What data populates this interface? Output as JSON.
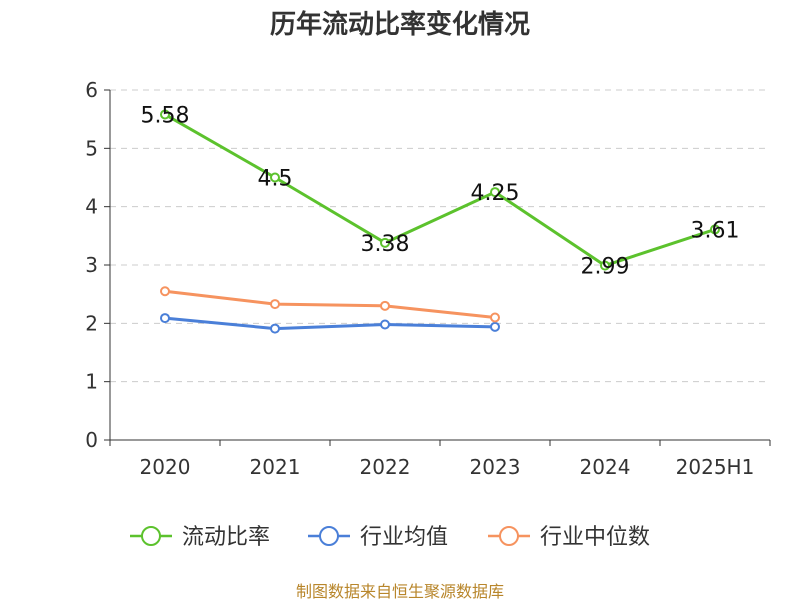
{
  "chart_data": {
    "type": "line",
    "title": "历年流动比率变化情况",
    "categories": [
      "2020",
      "2021",
      "2022",
      "2023",
      "2024",
      "2025H1"
    ],
    "ylim": [
      0,
      6
    ],
    "yticks": [
      0,
      1,
      2,
      3,
      4,
      5,
      6
    ],
    "grid": true,
    "legend_position": "bottom",
    "series": [
      {
        "name": "流动比率",
        "color": "#5cc22d",
        "values": [
          5.58,
          4.5,
          3.38,
          4.25,
          2.99,
          3.61
        ],
        "labels": [
          "5.58",
          "4.5",
          "3.38",
          "4.25",
          "2.99",
          "3.61"
        ],
        "show_labels": true
      },
      {
        "name": "行业均值",
        "color": "#4a7fd8",
        "values": [
          2.09,
          1.91,
          1.98,
          1.94,
          null,
          null
        ],
        "show_labels": false
      },
      {
        "name": "行业中位数",
        "color": "#f6935f",
        "values": [
          2.55,
          2.33,
          2.3,
          2.1,
          null,
          null
        ],
        "show_labels": false
      }
    ]
  },
  "footer": {
    "source": "制图数据来自恒生聚源数据库"
  }
}
